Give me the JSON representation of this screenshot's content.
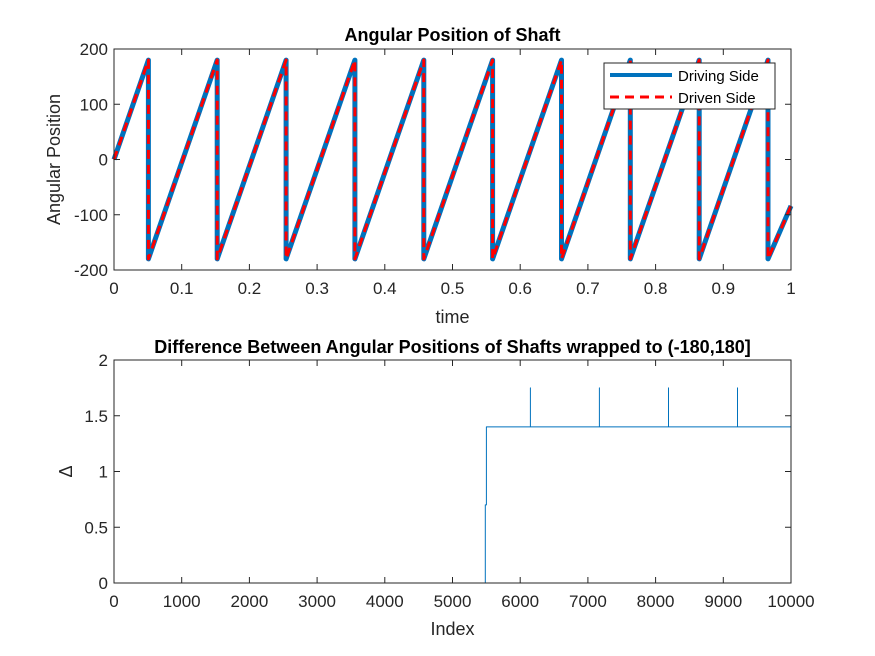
{
  "chart_data": [
    {
      "type": "line",
      "title": "Angular Position of Shaft",
      "xlabel": "time",
      "ylabel": "Angular Position",
      "xlim": [
        0,
        1
      ],
      "ylim": [
        -200,
        200
      ],
      "xticks": [
        0,
        0.1,
        0.2,
        0.3,
        0.4,
        0.5,
        0.6,
        0.7,
        0.8,
        0.9,
        1
      ],
      "yticks": [
        -200,
        -100,
        0,
        100,
        200
      ],
      "grid": false,
      "legend_position": "top-right",
      "series": [
        {
          "name": "Driving Side",
          "color": "#0072BD",
          "style": "solid",
          "x": [
            0,
            0.0508,
            0.0508,
            0.1525,
            0.1525,
            0.2542,
            0.2542,
            0.3559,
            0.3559,
            0.4576,
            0.4576,
            0.5593,
            0.5593,
            0.661,
            0.661,
            0.7627,
            0.7627,
            0.8644,
            0.8644,
            0.9661,
            0.9661,
            1
          ],
          "y": [
            0,
            180,
            -180,
            180,
            -180,
            180,
            -180,
            180,
            -180,
            180,
            -180,
            180,
            -180,
            180,
            -180,
            180,
            -180,
            180,
            -180,
            180,
            -180,
            -84
          ]
        },
        {
          "name": "Driven Side",
          "color": "#FF0000",
          "style": "dashed",
          "x": [
            0,
            0.0508,
            0.0508,
            0.1525,
            0.1525,
            0.2542,
            0.2542,
            0.3559,
            0.3559,
            0.4576,
            0.4576,
            0.5593,
            0.5593,
            0.661,
            0.661,
            0.7627,
            0.7627,
            0.8644,
            0.8644,
            0.9661,
            0.9661,
            1
          ],
          "y": [
            0,
            180,
            -180,
            180,
            -180,
            180,
            -180,
            180,
            -180,
            180,
            -180,
            180,
            -180,
            180,
            -180,
            180,
            -180,
            180,
            -180,
            180,
            -180,
            -84
          ]
        }
      ]
    },
    {
      "type": "line",
      "title": "Difference Between Angular Positions of Shafts wrapped to (-180,180]",
      "xlabel": "Index",
      "ylabel": "Δ",
      "xlim": [
        0,
        10000
      ],
      "ylim": [
        0,
        2
      ],
      "xticks": [
        0,
        1000,
        2000,
        3000,
        4000,
        5000,
        6000,
        7000,
        8000,
        9000,
        10000
      ],
      "yticks": [
        0,
        0.5,
        1,
        1.5,
        2
      ],
      "grid": false,
      "series": [
        {
          "color": "#0072BD",
          "x": [
            0,
            5485,
            5485,
            5500,
            5500,
            6150,
            6150,
            6150,
            7170,
            7170,
            7170,
            8190,
            8190,
            8190,
            9210,
            9210,
            9210,
            10000
          ],
          "y": [
            0,
            0,
            0.7,
            0.7,
            1.4,
            1.4,
            1.75,
            1.4,
            1.4,
            1.75,
            1.4,
            1.4,
            1.75,
            1.4,
            1.4,
            1.75,
            1.4,
            1.4
          ]
        }
      ]
    }
  ]
}
